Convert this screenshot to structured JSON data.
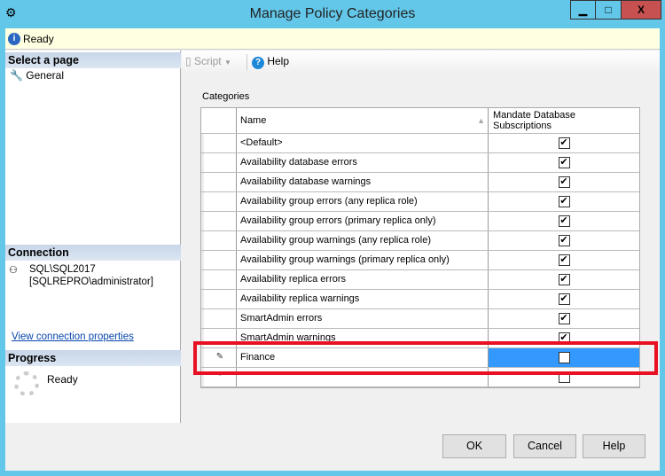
{
  "window": {
    "title": "Manage Policy Categories",
    "minimize": "▁",
    "maximize": "□",
    "close": "X"
  },
  "status": {
    "text": "Ready"
  },
  "left": {
    "select_page": "Select a page",
    "pages": [
      {
        "label": "General"
      }
    ],
    "connection_header": "Connection",
    "server": "SQL\\SQL2017",
    "user": "[SQLREPRO\\administrator]",
    "view_link": "View connection properties",
    "progress_header": "Progress",
    "progress_status": "Ready"
  },
  "toolbar": {
    "script": "Script",
    "help": "Help"
  },
  "grid": {
    "label": "Categories",
    "col_name": "Name",
    "col_mandate": "Mandate Database Subscriptions",
    "rows": [
      {
        "name": "<Default>",
        "checked": true
      },
      {
        "name": "Availability database errors",
        "checked": true
      },
      {
        "name": "Availability database warnings",
        "checked": true
      },
      {
        "name": "Availability group errors (any replica role)",
        "checked": true
      },
      {
        "name": "Availability group errors (primary replica only)",
        "checked": true
      },
      {
        "name": "Availability group warnings (any replica role)",
        "checked": true
      },
      {
        "name": "Availability group warnings (primary replica only)",
        "checked": true
      },
      {
        "name": "Availability replica errors",
        "checked": true
      },
      {
        "name": "Availability replica warnings",
        "checked": true
      },
      {
        "name": "SmartAdmin errors",
        "checked": true
      },
      {
        "name": "SmartAdmin warnings",
        "checked": true
      },
      {
        "name": "Finance",
        "checked": false,
        "editing": true
      },
      {
        "name": "",
        "checked": false,
        "new": true
      }
    ]
  },
  "buttons": {
    "ok": "OK",
    "cancel": "Cancel",
    "help": "Help"
  },
  "colors": {
    "titlebar": "#63c7e9",
    "close": "#c75050",
    "highlight": "#e81123",
    "selection": "#3399ff"
  }
}
